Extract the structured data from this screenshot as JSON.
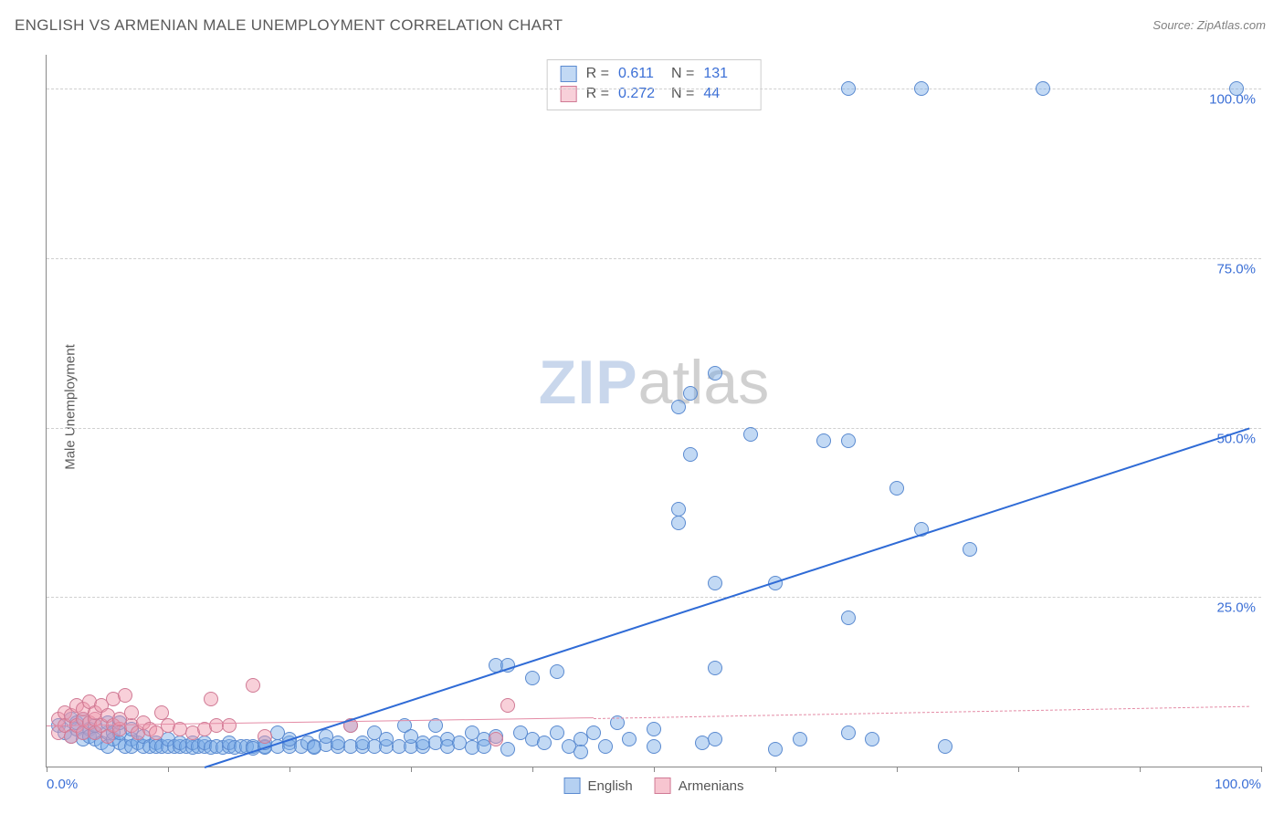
{
  "title": "ENGLISH VS ARMENIAN MALE UNEMPLOYMENT CORRELATION CHART",
  "source_label": "Source:",
  "source_value": "ZipAtlas.com",
  "ylabel": "Male Unemployment",
  "watermark": {
    "part1": "ZIP",
    "part2": "atlas"
  },
  "chart": {
    "type": "scatter",
    "xlim": [
      0,
      100
    ],
    "ylim": [
      0,
      105
    ],
    "x_tick_step": 10,
    "y_ticks": [
      25,
      50,
      75,
      100
    ],
    "y_tick_labels": [
      "25.0%",
      "50.0%",
      "75.0%",
      "100.0%"
    ],
    "x_start_label": "0.0%",
    "x_end_label": "100.0%",
    "background_color": "#ffffff",
    "grid_color": "#d0d0d0",
    "axis_color": "#888888",
    "tick_label_color": "#3b6fd6",
    "marker_radius": 8,
    "marker_border_width": 1.2
  },
  "series": [
    {
      "name": "English",
      "R": "0.611",
      "N": "131",
      "fill_color": "rgba(120,170,230,0.45)",
      "border_color": "#5a8ad0",
      "trend": {
        "x1": 13,
        "y1": 0,
        "x2": 99,
        "y2": 50,
        "color": "#2f6bd6",
        "width": 2.4,
        "dash": "solid"
      },
      "points": [
        [
          1,
          6
        ],
        [
          1.5,
          5
        ],
        [
          2,
          4.5
        ],
        [
          2,
          7
        ],
        [
          2.5,
          5.5
        ],
        [
          2.5,
          6.5
        ],
        [
          3,
          5
        ],
        [
          3,
          4
        ],
        [
          3,
          7
        ],
        [
          3.5,
          5.5
        ],
        [
          3.5,
          4.5
        ],
        [
          4,
          5
        ],
        [
          4,
          4
        ],
        [
          4,
          6
        ],
        [
          4.5,
          3.5
        ],
        [
          5,
          5
        ],
        [
          5,
          6.5
        ],
        [
          5,
          3
        ],
        [
          5.5,
          4
        ],
        [
          5.5,
          5
        ],
        [
          6,
          3.5
        ],
        [
          6,
          5
        ],
        [
          6,
          6.5
        ],
        [
          6.5,
          3
        ],
        [
          7,
          4
        ],
        [
          7,
          3
        ],
        [
          7,
          5.5
        ],
        [
          7.5,
          3.5
        ],
        [
          8,
          3
        ],
        [
          8,
          4.5
        ],
        [
          8.5,
          3
        ],
        [
          9,
          3.5
        ],
        [
          9,
          3
        ],
        [
          9.5,
          3
        ],
        [
          10,
          3
        ],
        [
          10,
          4
        ],
        [
          10.5,
          3
        ],
        [
          11,
          3
        ],
        [
          11,
          3.5
        ],
        [
          11.5,
          3
        ],
        [
          12,
          2.8
        ],
        [
          12,
          3.5
        ],
        [
          12.5,
          3
        ],
        [
          13,
          3
        ],
        [
          13,
          3.5
        ],
        [
          13.5,
          2.8
        ],
        [
          14,
          3
        ],
        [
          14.5,
          2.8
        ],
        [
          15,
          3
        ],
        [
          15,
          3.5
        ],
        [
          15.5,
          2.8
        ],
        [
          16,
          3
        ],
        [
          16.5,
          3
        ],
        [
          17,
          3
        ],
        [
          17,
          2.7
        ],
        [
          18,
          3
        ],
        [
          18,
          2.8
        ],
        [
          18,
          3.5
        ],
        [
          19,
          3
        ],
        [
          19,
          5
        ],
        [
          20,
          3.5
        ],
        [
          20,
          3
        ],
        [
          20,
          4
        ],
        [
          21,
          3
        ],
        [
          21.5,
          3.5
        ],
        [
          22,
          3
        ],
        [
          22,
          2.8
        ],
        [
          23,
          3.2
        ],
        [
          23,
          4.5
        ],
        [
          24,
          3
        ],
        [
          24,
          3.5
        ],
        [
          25,
          3
        ],
        [
          25,
          6
        ],
        [
          26,
          3
        ],
        [
          26,
          3.5
        ],
        [
          27,
          3
        ],
        [
          27,
          5
        ],
        [
          28,
          3
        ],
        [
          28,
          4
        ],
        [
          29,
          3
        ],
        [
          29.5,
          6
        ],
        [
          30,
          3
        ],
        [
          30,
          4.5
        ],
        [
          31,
          3
        ],
        [
          31,
          3.5
        ],
        [
          32,
          3.5
        ],
        [
          32,
          6
        ],
        [
          33,
          4
        ],
        [
          33,
          3
        ],
        [
          34,
          3.5
        ],
        [
          35,
          5
        ],
        [
          35,
          2.8
        ],
        [
          36,
          4
        ],
        [
          36,
          3
        ],
        [
          37,
          4.5
        ],
        [
          37,
          15
        ],
        [
          38,
          2.5
        ],
        [
          38,
          15
        ],
        [
          39,
          5
        ],
        [
          40,
          4
        ],
        [
          40,
          13
        ],
        [
          41,
          3.5
        ],
        [
          42,
          5
        ],
        [
          42,
          14
        ],
        [
          43,
          3
        ],
        [
          44,
          4
        ],
        [
          44,
          2.2
        ],
        [
          45,
          5
        ],
        [
          46,
          3
        ],
        [
          47,
          6.5
        ],
        [
          48,
          4
        ],
        [
          50,
          3
        ],
        [
          50,
          5.5
        ],
        [
          52,
          36
        ],
        [
          52,
          38
        ],
        [
          52,
          53
        ],
        [
          53,
          46
        ],
        [
          53,
          55
        ],
        [
          54,
          3.5
        ],
        [
          55,
          4
        ],
        [
          55,
          14.5
        ],
        [
          55,
          27
        ],
        [
          55,
          58
        ],
        [
          58,
          49
        ],
        [
          60,
          27
        ],
        [
          60,
          2.5
        ],
        [
          62,
          4
        ],
        [
          64,
          48
        ],
        [
          66,
          22
        ],
        [
          66,
          48
        ],
        [
          66,
          5
        ],
        [
          66,
          100
        ],
        [
          68,
          4
        ],
        [
          70,
          41
        ],
        [
          72,
          100
        ],
        [
          72,
          35
        ],
        [
          74,
          3
        ],
        [
          76,
          32
        ],
        [
          82,
          100
        ],
        [
          98,
          100
        ]
      ]
    },
    {
      "name": "Armenians",
      "R": "0.272",
      "N": "44",
      "fill_color": "rgba(240,150,170,0.45)",
      "border_color": "#d07a95",
      "trend": {
        "x1": 0,
        "y1": 6,
        "x2": 45,
        "y2": 7.2,
        "color": "#e48ba5",
        "width": 1.8,
        "dash": "solid"
      },
      "trend_ext": {
        "x1": 45,
        "y1": 7.2,
        "x2": 99,
        "y2": 9,
        "color": "#e48ba5",
        "width": 1.2,
        "dash": "dashed"
      },
      "points": [
        [
          1,
          5
        ],
        [
          1,
          7
        ],
        [
          1.5,
          8
        ],
        [
          1.5,
          6
        ],
        [
          2,
          4.5
        ],
        [
          2,
          7.5
        ],
        [
          2.5,
          6
        ],
        [
          2.5,
          9
        ],
        [
          3,
          7
        ],
        [
          3,
          5
        ],
        [
          3,
          8.5
        ],
        [
          3.5,
          6.5
        ],
        [
          3.5,
          9.5
        ],
        [
          4,
          5
        ],
        [
          4,
          7
        ],
        [
          4,
          8
        ],
        [
          4.5,
          6
        ],
        [
          4.5,
          9
        ],
        [
          5,
          4.5
        ],
        [
          5,
          7.5
        ],
        [
          5.5,
          6
        ],
        [
          5.5,
          10
        ],
        [
          6,
          5.5
        ],
        [
          6,
          7
        ],
        [
          6.5,
          10.5
        ],
        [
          7,
          6
        ],
        [
          7,
          8
        ],
        [
          7.5,
          5
        ],
        [
          8,
          6.5
        ],
        [
          8.5,
          5.5
        ],
        [
          9,
          5
        ],
        [
          9.5,
          8
        ],
        [
          10,
          6
        ],
        [
          11,
          5.5
        ],
        [
          12,
          5
        ],
        [
          13,
          5.5
        ],
        [
          13.5,
          10
        ],
        [
          14,
          6
        ],
        [
          15,
          6
        ],
        [
          17,
          12
        ],
        [
          18,
          4.5
        ],
        [
          25,
          6
        ],
        [
          37,
          4
        ],
        [
          38,
          9
        ]
      ]
    }
  ],
  "legend_bottom": [
    {
      "label": "English",
      "fill": "rgba(120,170,230,0.55)",
      "border": "#5a8ad0"
    },
    {
      "label": "Armenians",
      "fill": "rgba(240,150,170,0.55)",
      "border": "#d07a95"
    }
  ]
}
